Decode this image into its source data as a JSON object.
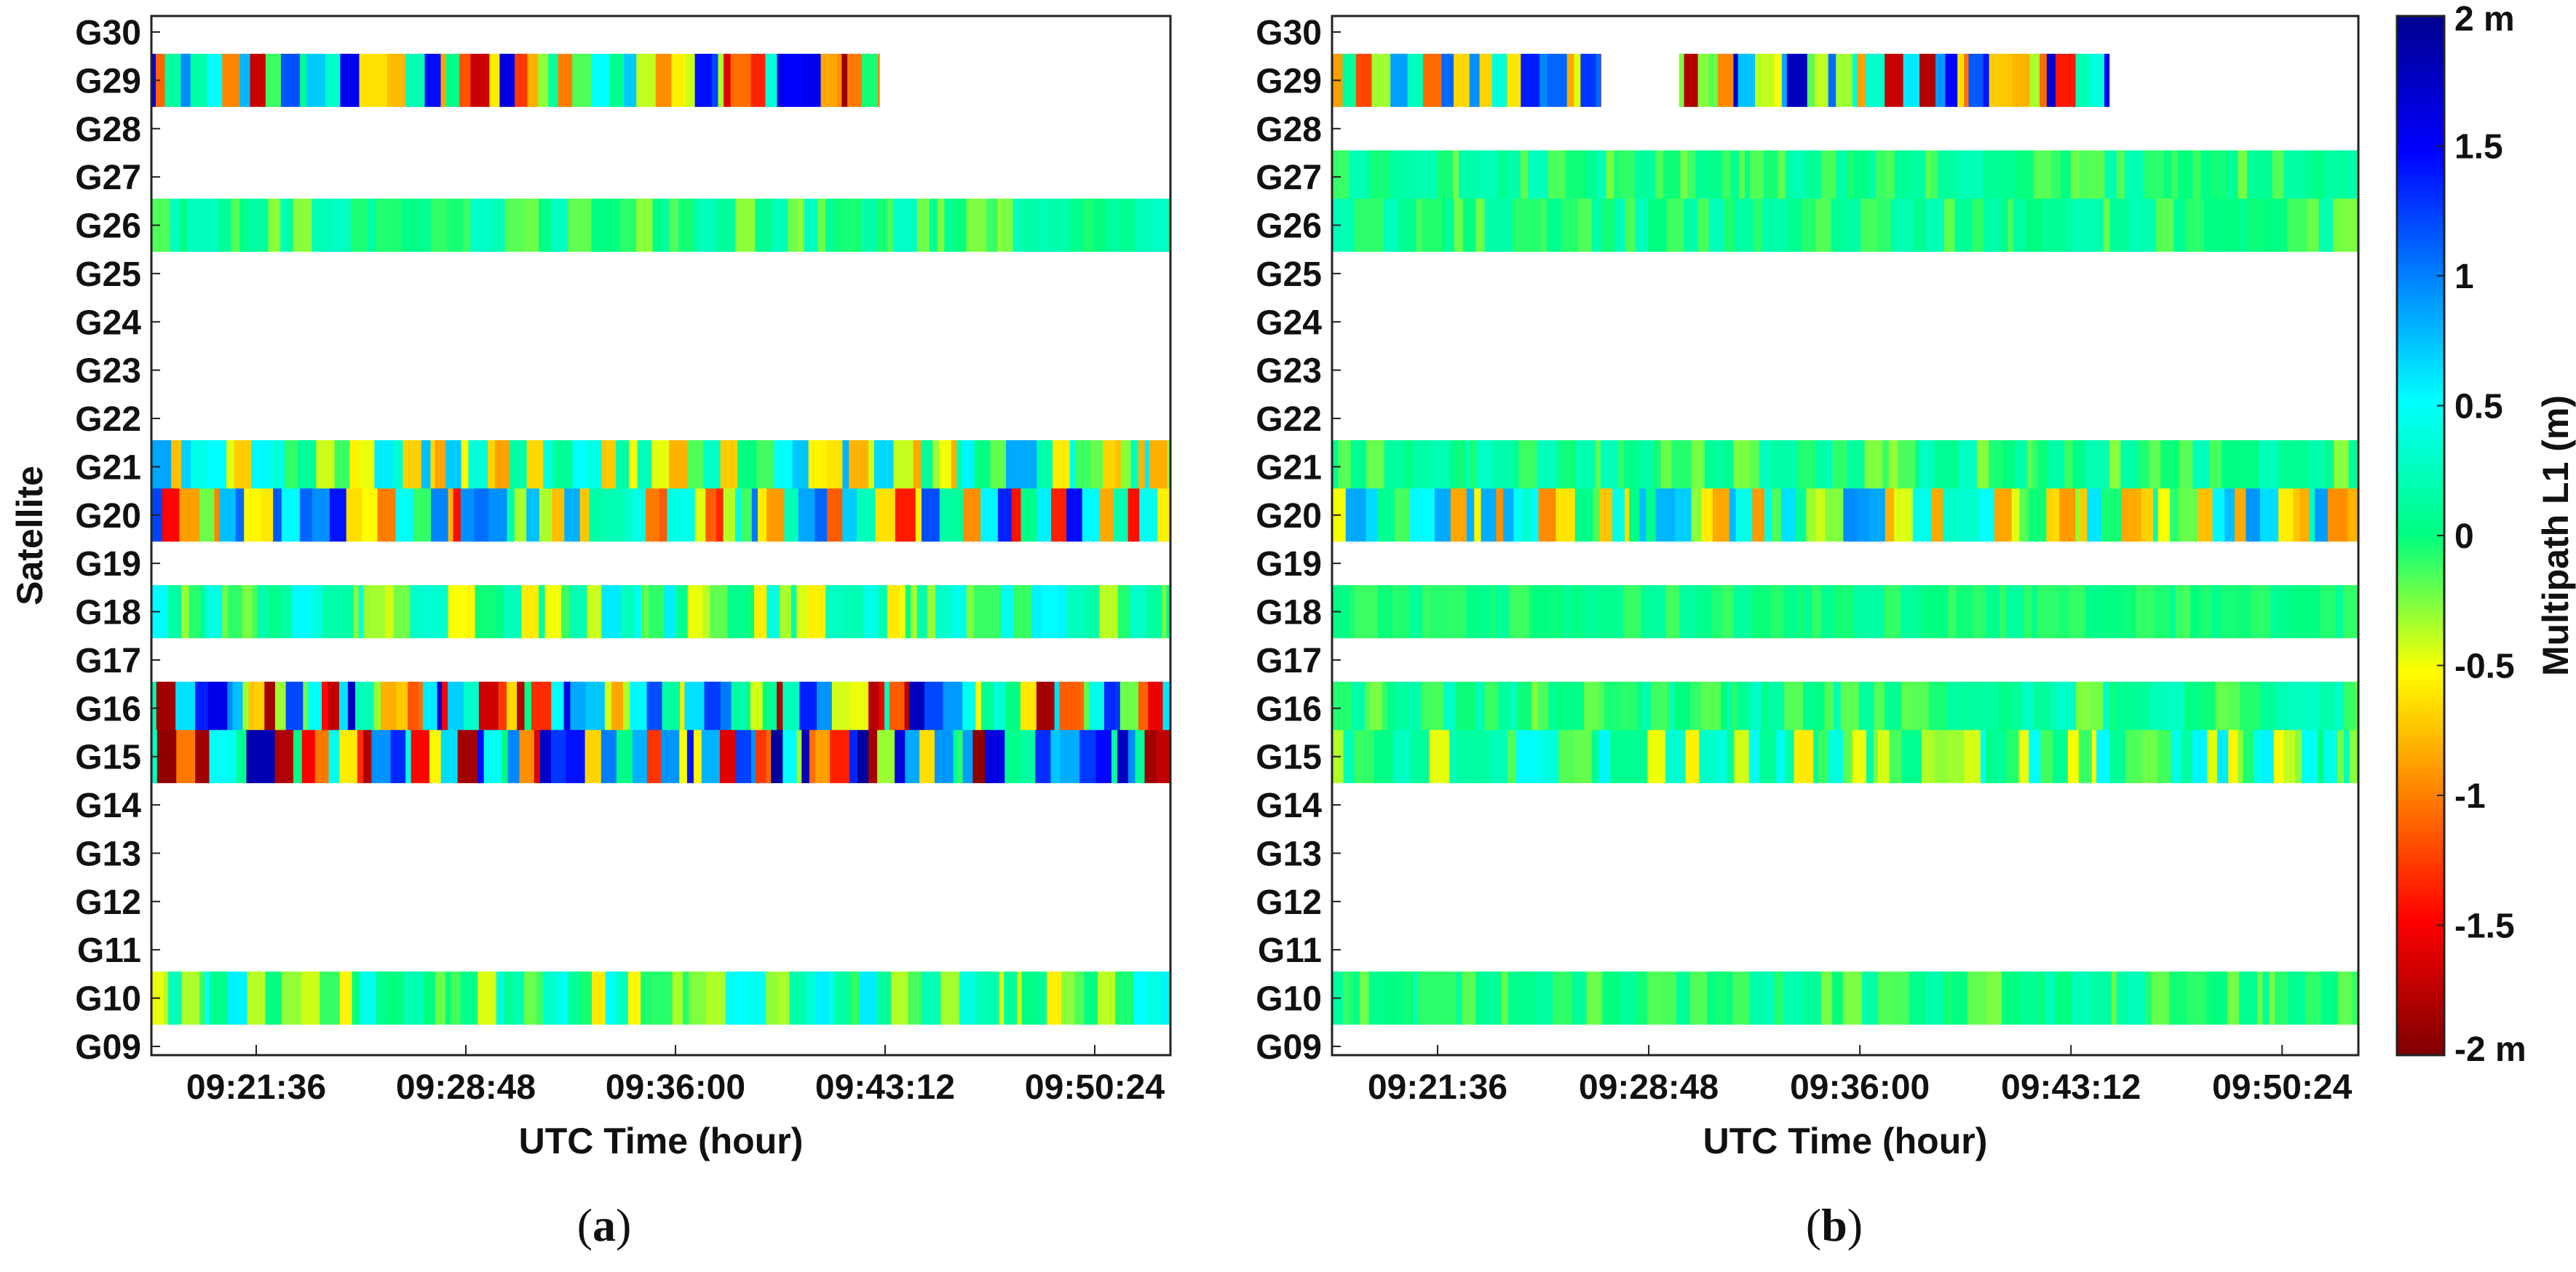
{
  "figure": {
    "colorbar": {
      "label": "Multipath L1 (m)",
      "ticks": [
        "2 m",
        "1.5",
        "1",
        "0.5",
        "0",
        "-0.5",
        "-1",
        "-1.5",
        "-2 m"
      ],
      "values": [
        2,
        1.5,
        1,
        0.5,
        0,
        -0.5,
        -1,
        -1.5,
        -2
      ],
      "colormap": [
        "#7f0000",
        "#ff0000",
        "#ffff00",
        "#00ff80",
        "#00ffff",
        "#0000ff",
        "#00008f"
      ]
    }
  },
  "chart_data": [
    {
      "type": "heatmap",
      "panel": "a",
      "caption_open": "(",
      "caption_letter": "a",
      "caption_close": ")",
      "xlabel": "UTC Time (hour)",
      "ylabel": "Satellite",
      "xtick_labels": [
        "09:21:36",
        "09:28:48",
        "09:36:00",
        "09:43:12",
        "09:50:24"
      ],
      "xlim": [
        "09:18:00",
        "09:53:00"
      ],
      "ytick_labels": [
        "G30",
        "G29",
        "G28",
        "G27",
        "G26",
        "G25",
        "G24",
        "G23",
        "G22",
        "G21",
        "G20",
        "G19",
        "G18",
        "G17",
        "G16",
        "G15",
        "G14",
        "G13",
        "G12",
        "G11",
        "G10",
        "G09"
      ],
      "value_range": [
        -2,
        2
      ],
      "series": [
        {
          "name": "G29",
          "start": "09:18:00",
          "end": "09:43:00",
          "multipath_amplitude_m": 1.9
        },
        {
          "name": "G26",
          "start": "09:18:00",
          "end": "09:53:00",
          "multipath_amplitude_m": 0.3
        },
        {
          "name": "G21",
          "start": "09:18:00",
          "end": "09:53:00",
          "multipath_amplitude_m": 0.9
        },
        {
          "name": "G20",
          "start": "09:18:00",
          "end": "09:53:00",
          "multipath_amplitude_m": 1.5
        },
        {
          "name": "G18",
          "start": "09:18:00",
          "end": "09:53:00",
          "multipath_amplitude_m": 0.6
        },
        {
          "name": "G16",
          "start": "09:18:00",
          "end": "09:53:00",
          "multipath_amplitude_m": 1.9
        },
        {
          "name": "G15",
          "start": "09:18:00",
          "end": "09:53:00",
          "multipath_amplitude_m": 2.0
        },
        {
          "name": "G10",
          "start": "09:18:00",
          "end": "09:53:00",
          "multipath_amplitude_m": 0.6
        }
      ]
    },
    {
      "type": "heatmap",
      "panel": "b",
      "caption_open": "(",
      "caption_letter": "b",
      "caption_close": ")",
      "xlabel": "UTC Time (hour)",
      "ylabel": "",
      "xtick_labels": [
        "09:21:36",
        "09:28:48",
        "09:36:00",
        "09:43:12",
        "09:50:24"
      ],
      "xlim": [
        "09:18:00",
        "09:53:00"
      ],
      "ytick_labels": [
        "G30",
        "G29",
        "G28",
        "G27",
        "G26",
        "G25",
        "G24",
        "G23",
        "G22",
        "G21",
        "G20",
        "G19",
        "G18",
        "G17",
        "G16",
        "G15",
        "G14",
        "G13",
        "G12",
        "G11",
        "G10",
        "G09"
      ],
      "value_range": [
        -2,
        2
      ],
      "series": [
        {
          "name": "G29",
          "start": "09:18:00",
          "end": "09:27:10",
          "multipath_amplitude_m": 1.5
        },
        {
          "name": "G29",
          "start": "09:29:50",
          "end": "09:44:30",
          "multipath_amplitude_m": 1.8
        },
        {
          "name": "G27",
          "start": "09:18:00",
          "end": "09:53:00",
          "multipath_amplitude_m": 0.25
        },
        {
          "name": "G26",
          "start": "09:18:00",
          "end": "09:53:00",
          "multipath_amplitude_m": 0.25
        },
        {
          "name": "G21",
          "start": "09:18:00",
          "end": "09:53:00",
          "multipath_amplitude_m": 0.3
        },
        {
          "name": "G20",
          "start": "09:18:00",
          "end": "09:53:00",
          "multipath_amplitude_m": 1.0
        },
        {
          "name": "G18",
          "start": "09:18:00",
          "end": "09:53:00",
          "multipath_amplitude_m": 0.15
        },
        {
          "name": "G16",
          "start": "09:18:00",
          "end": "09:53:00",
          "multipath_amplitude_m": 0.3
        },
        {
          "name": "G15",
          "start": "09:18:00",
          "end": "09:53:00",
          "multipath_amplitude_m": 0.6
        },
        {
          "name": "G10",
          "start": "09:18:00",
          "end": "09:53:00",
          "multipath_amplitude_m": 0.25
        }
      ]
    }
  ]
}
